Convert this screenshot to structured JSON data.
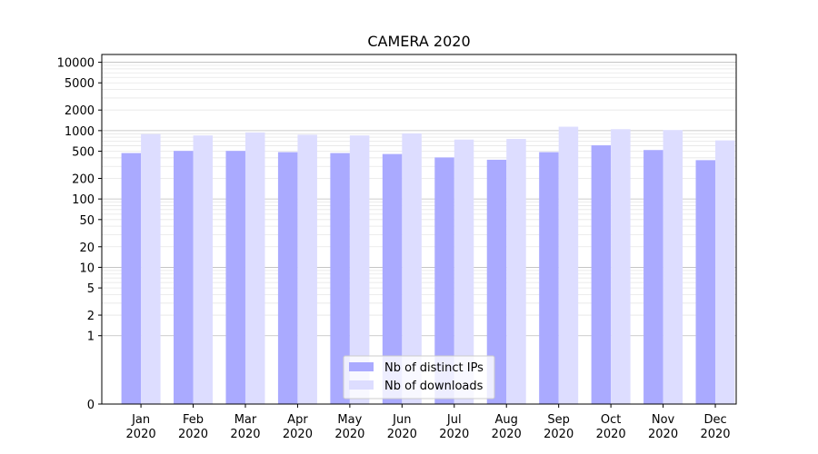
{
  "chart_data": {
    "type": "bar",
    "title": "CAMERA 2020",
    "xlabel": "",
    "ylabel": "",
    "y_scale": "symlog",
    "ylim": [
      0,
      13000
    ],
    "y_ticks": [
      0,
      1,
      2,
      5,
      10,
      20,
      50,
      100,
      200,
      500,
      1000,
      2000,
      5000,
      10000
    ],
    "y_tick_labels": [
      "0",
      "1",
      "2",
      "5",
      "10",
      "20",
      "50",
      "100",
      "200",
      "500",
      "1000",
      "2000",
      "5000",
      "10000"
    ],
    "grid": "on",
    "legend_position": "bottom-center",
    "categories": [
      [
        "Jan",
        "2020"
      ],
      [
        "Feb",
        "2020"
      ],
      [
        "Mar",
        "2020"
      ],
      [
        "Apr",
        "2020"
      ],
      [
        "May",
        "2020"
      ],
      [
        "Jun",
        "2020"
      ],
      [
        "Jul",
        "2020"
      ],
      [
        "Aug",
        "2020"
      ],
      [
        "Sep",
        "2020"
      ],
      [
        "Oct",
        "2020"
      ],
      [
        "Nov",
        "2020"
      ],
      [
        "Dec",
        "2020"
      ]
    ],
    "series": [
      {
        "name": "Nb of distinct IPs",
        "color": "#aaaaff",
        "values": [
          470,
          505,
          505,
          485,
          470,
          455,
          405,
          375,
          485,
          610,
          520,
          370
        ]
      },
      {
        "name": "Nb of downloads",
        "color": "#ddddff",
        "values": [
          890,
          850,
          940,
          870,
          850,
          910,
          740,
          755,
          1140,
          1050,
          1020,
          720
        ]
      }
    ]
  }
}
